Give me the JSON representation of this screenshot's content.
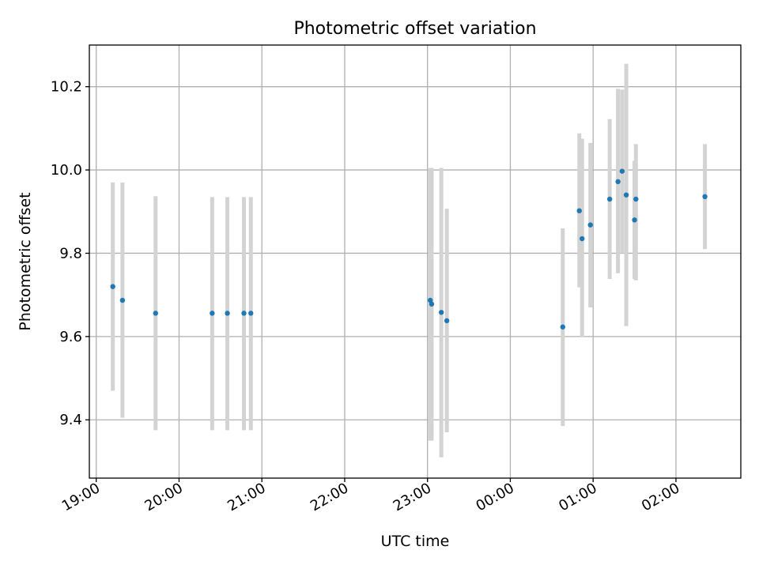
{
  "chart_data": {
    "type": "scatter",
    "title": "Photometric offset variation",
    "xlabel": "UTC time",
    "ylabel": "Photometric offset",
    "x_kind": "time",
    "x_tick_labels": [
      "19:00",
      "20:00",
      "21:00",
      "22:00",
      "23:00",
      "00:00",
      "01:00",
      "02:00"
    ],
    "y_ticks": [
      9.4,
      9.6,
      9.8,
      10.0,
      10.2
    ],
    "y_tick_labels": [
      "9.4",
      "9.6",
      "9.8",
      "10.0",
      "10.2"
    ],
    "xlim": [
      "18:55",
      "02:47"
    ],
    "ylim": [
      9.26,
      10.3
    ],
    "grid": true,
    "marker_color": "#1f77b4",
    "errorbar_color": "#d3d3d3",
    "series": [
      {
        "points": [
          {
            "x": "19:12",
            "y": 9.72,
            "ylow": 9.47,
            "yhigh": 9.97
          },
          {
            "x": "19:19",
            "y": 9.687,
            "ylow": 9.405,
            "yhigh": 9.97
          },
          {
            "x": "19:43",
            "y": 9.656,
            "ylow": 9.375,
            "yhigh": 9.937
          },
          {
            "x": "20:24",
            "y": 9.656,
            "ylow": 9.375,
            "yhigh": 9.935
          },
          {
            "x": "20:35",
            "y": 9.656,
            "ylow": 9.375,
            "yhigh": 9.935
          },
          {
            "x": "20:47",
            "y": 9.656,
            "ylow": 9.375,
            "yhigh": 9.935
          },
          {
            "x": "20:52",
            "y": 9.656,
            "ylow": 9.375,
            "yhigh": 9.935
          },
          {
            "x": "23:02",
            "y": 9.687,
            "ylow": 9.35,
            "yhigh": 10.005
          },
          {
            "x": "23:03",
            "y": 9.678,
            "ylow": 9.35,
            "yhigh": 10.005
          },
          {
            "x": "23:10",
            "y": 9.658,
            "ylow": 9.31,
            "yhigh": 10.005
          },
          {
            "x": "23:14",
            "y": 9.638,
            "ylow": 9.37,
            "yhigh": 9.907
          },
          {
            "x": "00:38",
            "y": 9.623,
            "ylow": 9.385,
            "yhigh": 9.86
          },
          {
            "x": "00:50",
            "y": 9.902,
            "ylow": 9.718,
            "yhigh": 10.088
          },
          {
            "x": "00:52",
            "y": 9.835,
            "ylow": 9.598,
            "yhigh": 10.075
          },
          {
            "x": "00:58",
            "y": 9.868,
            "ylow": 9.67,
            "yhigh": 10.065
          },
          {
            "x": "01:12",
            "y": 9.93,
            "ylow": 9.738,
            "yhigh": 10.122
          },
          {
            "x": "01:18",
            "y": 9.972,
            "ylow": 9.752,
            "yhigh": 10.195
          },
          {
            "x": "01:21",
            "y": 9.997,
            "ylow": 9.8,
            "yhigh": 10.193
          },
          {
            "x": "01:24",
            "y": 9.94,
            "ylow": 9.625,
            "yhigh": 10.255
          },
          {
            "x": "01:30",
            "y": 9.88,
            "ylow": 9.738,
            "yhigh": 10.022
          },
          {
            "x": "01:31",
            "y": 9.93,
            "ylow": 9.735,
            "yhigh": 10.062
          },
          {
            "x": "02:21",
            "y": 9.936,
            "ylow": 9.81,
            "yhigh": 10.062
          }
        ]
      }
    ]
  }
}
